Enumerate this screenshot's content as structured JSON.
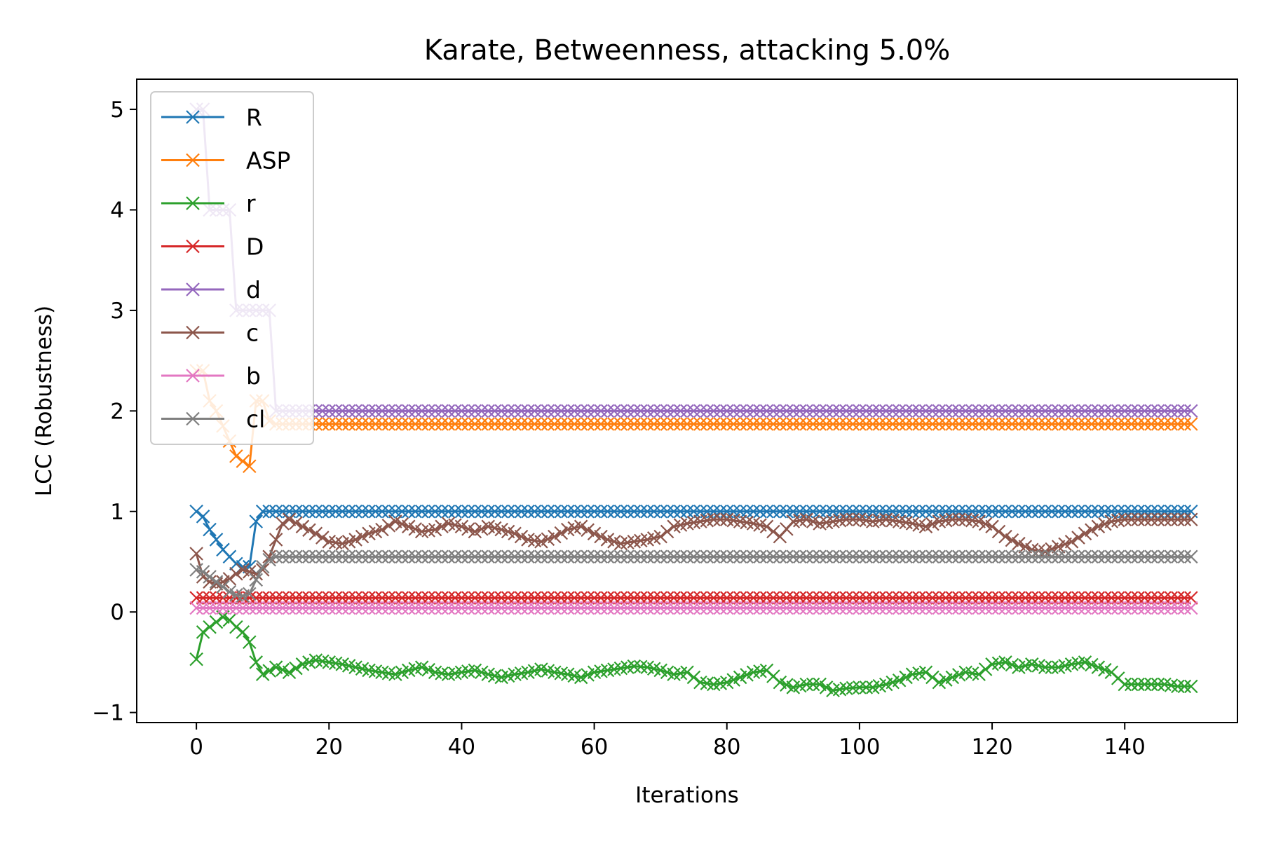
{
  "chart_data": {
    "type": "line",
    "title": "Karate, Betweenness, attacking 5.0%",
    "xlabel": "Iterations",
    "ylabel": "LCC (Robustness)",
    "xlim": [
      -9,
      157
    ],
    "ylim": [
      -1.1,
      5.3
    ],
    "xticks": [
      0,
      20,
      40,
      60,
      80,
      100,
      120,
      140
    ],
    "yticks": [
      -1,
      0,
      1,
      2,
      3,
      4,
      5
    ],
    "grid": false,
    "legend_position": "upper-left",
    "marker": "x",
    "series": [
      {
        "name": "R",
        "color": "#1f77b4",
        "x": [
          0,
          1,
          2,
          3,
          4,
          5,
          6,
          7,
          8,
          9,
          10,
          11,
          12,
          150
        ],
        "y": [
          1.0,
          0.95,
          0.82,
          0.72,
          0.62,
          0.55,
          0.48,
          0.45,
          0.45,
          0.9,
          1.0,
          1.0,
          1.0,
          1.0
        ]
      },
      {
        "name": "ASP",
        "color": "#ff7f0e",
        "x": [
          0,
          1,
          2,
          3,
          4,
          5,
          6,
          7,
          8,
          9,
          10,
          11,
          12,
          150
        ],
        "y": [
          2.4,
          2.4,
          2.1,
          2.0,
          1.85,
          1.7,
          1.55,
          1.5,
          1.45,
          2.1,
          2.1,
          1.9,
          1.87,
          1.87
        ]
      },
      {
        "name": "r",
        "color": "#2ca02c",
        "x": [
          0,
          1,
          2,
          3,
          4,
          5,
          6,
          7,
          8,
          9,
          10,
          12,
          14,
          16,
          18,
          20,
          22,
          24,
          26,
          28,
          30,
          32,
          34,
          36,
          38,
          40,
          42,
          44,
          46,
          48,
          50,
          52,
          54,
          56,
          58,
          60,
          62,
          64,
          66,
          68,
          70,
          72,
          74,
          76,
          78,
          80,
          82,
          84,
          86,
          88,
          90,
          92,
          94,
          96,
          98,
          100,
          102,
          104,
          106,
          108,
          110,
          112,
          114,
          116,
          118,
          120,
          122,
          124,
          126,
          128,
          130,
          132,
          134,
          136,
          138,
          140,
          142,
          144,
          146,
          148,
          150
        ],
        "y": [
          -0.47,
          -0.2,
          -0.15,
          -0.1,
          -0.05,
          -0.08,
          -0.15,
          -0.2,
          -0.3,
          -0.5,
          -0.62,
          -0.55,
          -0.6,
          -0.52,
          -0.48,
          -0.5,
          -0.52,
          -0.55,
          -0.58,
          -0.6,
          -0.62,
          -0.58,
          -0.55,
          -0.6,
          -0.62,
          -0.6,
          -0.58,
          -0.62,
          -0.65,
          -0.62,
          -0.6,
          -0.57,
          -0.6,
          -0.62,
          -0.65,
          -0.6,
          -0.58,
          -0.56,
          -0.54,
          -0.55,
          -0.58,
          -0.62,
          -0.6,
          -0.7,
          -0.72,
          -0.7,
          -0.65,
          -0.6,
          -0.58,
          -0.7,
          -0.75,
          -0.72,
          -0.72,
          -0.78,
          -0.76,
          -0.75,
          -0.75,
          -0.72,
          -0.68,
          -0.62,
          -0.6,
          -0.7,
          -0.65,
          -0.6,
          -0.62,
          -0.52,
          -0.5,
          -0.55,
          -0.52,
          -0.55,
          -0.55,
          -0.52,
          -0.5,
          -0.55,
          -0.6,
          -0.72,
          -0.72,
          -0.72,
          -0.72,
          -0.74,
          -0.74
        ]
      },
      {
        "name": "D",
        "color": "#d62728",
        "x": [
          0,
          150
        ],
        "y": [
          0.14,
          0.14
        ]
      },
      {
        "name": "d",
        "color": "#9467bd",
        "x": [
          0,
          1,
          2,
          3,
          4,
          5,
          6,
          7,
          8,
          9,
          10,
          11,
          12,
          150
        ],
        "y": [
          5.0,
          5.0,
          4.0,
          4.0,
          4.0,
          4.0,
          3.0,
          3.0,
          3.0,
          3.0,
          3.0,
          3.0,
          2.0,
          2.0
        ]
      },
      {
        "name": "c",
        "color": "#8c564b",
        "x": [
          0,
          1,
          2,
          3,
          4,
          5,
          6,
          7,
          8,
          9,
          10,
          11,
          12,
          13,
          14,
          16,
          18,
          20,
          22,
          24,
          26,
          28,
          30,
          32,
          34,
          36,
          38,
          40,
          42,
          44,
          46,
          48,
          50,
          52,
          54,
          56,
          58,
          60,
          62,
          64,
          66,
          68,
          70,
          72,
          74,
          76,
          78,
          80,
          82,
          84,
          86,
          88,
          90,
          92,
          94,
          96,
          98,
          100,
          102,
          104,
          106,
          108,
          110,
          112,
          114,
          116,
          118,
          120,
          122,
          124,
          126,
          128,
          130,
          132,
          134,
          136,
          138,
          140,
          142,
          144,
          146,
          148,
          150
        ],
        "y": [
          0.58,
          0.35,
          0.3,
          0.28,
          0.3,
          0.33,
          0.38,
          0.42,
          0.4,
          0.38,
          0.42,
          0.55,
          0.72,
          0.88,
          0.92,
          0.85,
          0.78,
          0.7,
          0.68,
          0.72,
          0.78,
          0.82,
          0.9,
          0.85,
          0.8,
          0.82,
          0.88,
          0.85,
          0.8,
          0.85,
          0.82,
          0.78,
          0.72,
          0.7,
          0.75,
          0.82,
          0.85,
          0.78,
          0.72,
          0.68,
          0.7,
          0.72,
          0.75,
          0.85,
          0.88,
          0.9,
          0.92,
          0.92,
          0.9,
          0.88,
          0.85,
          0.75,
          0.9,
          0.92,
          0.88,
          0.9,
          0.92,
          0.92,
          0.9,
          0.92,
          0.9,
          0.88,
          0.85,
          0.9,
          0.92,
          0.92,
          0.9,
          0.85,
          0.75,
          0.68,
          0.62,
          0.6,
          0.65,
          0.7,
          0.78,
          0.85,
          0.9,
          0.92,
          0.92,
          0.92,
          0.92,
          0.92,
          0.92
        ]
      },
      {
        "name": "b",
        "color": "#e377c2",
        "x": [
          0,
          150
        ],
        "y": [
          0.04,
          0.04
        ]
      },
      {
        "name": "cl",
        "color": "#7f7f7f",
        "x": [
          0,
          1,
          2,
          3,
          4,
          5,
          6,
          7,
          8,
          9,
          10,
          11,
          12,
          150
        ],
        "y": [
          0.42,
          0.4,
          0.35,
          0.3,
          0.25,
          0.2,
          0.17,
          0.16,
          0.18,
          0.32,
          0.45,
          0.52,
          0.55,
          0.55
        ]
      }
    ]
  }
}
